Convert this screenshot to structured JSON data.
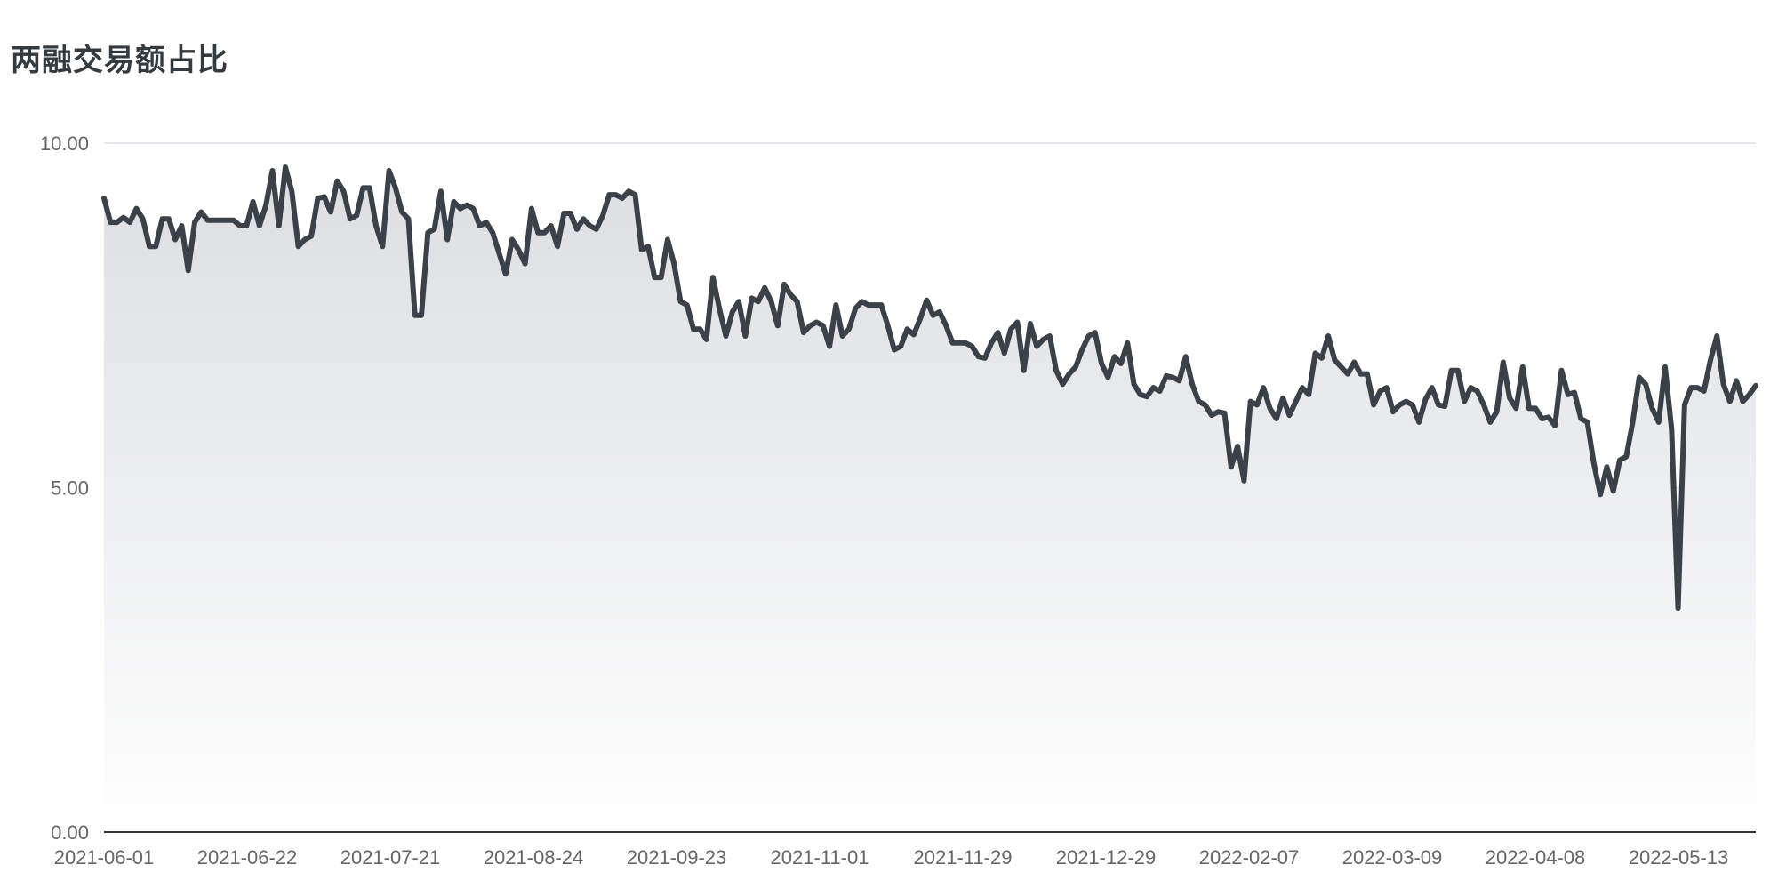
{
  "chart_data": {
    "type": "area",
    "title": "两融交易额占比",
    "xlabel": "",
    "ylabel": "",
    "ylim": [
      0,
      10
    ],
    "yticks": [
      "0.00",
      "5.00",
      "10.00"
    ],
    "xticks": [
      "2021-06-01",
      "2021-06-22",
      "2021-07-21",
      "2021-08-24",
      "2021-09-23",
      "2021-11-01",
      "2021-11-29",
      "2021-12-29",
      "2022-02-07",
      "2022-03-09",
      "2022-04-08",
      "2022-05-13"
    ],
    "grid": true,
    "legend": "none",
    "colors": {
      "line": "#3b4148",
      "fill_top": "#dcdee1",
      "fill_bottom": "#ffffff",
      "grid": "#d9dde3",
      "axis": "#333333"
    },
    "series": [
      {
        "values": [
          9.2,
          8.85,
          8.85,
          8.92,
          8.85,
          9.05,
          8.9,
          8.5,
          8.5,
          8.9,
          8.9,
          8.6,
          8.8,
          8.15,
          8.85,
          9.0,
          8.88,
          8.88,
          8.88,
          8.88,
          8.88,
          8.8,
          8.8,
          9.15,
          8.8,
          9.1,
          9.6,
          8.8,
          9.65,
          9.3,
          8.5,
          8.6,
          8.65,
          9.2,
          9.22,
          9.0,
          9.45,
          9.3,
          8.9,
          8.95,
          9.35,
          9.35,
          8.8,
          8.5,
          9.6,
          9.35,
          9.0,
          8.9,
          7.5,
          7.5,
          8.7,
          8.75,
          9.3,
          8.6,
          9.15,
          9.05,
          9.1,
          9.05,
          8.8,
          8.85,
          8.7,
          8.4,
          8.1,
          8.6,
          8.45,
          8.25,
          9.05,
          8.7,
          8.7,
          8.8,
          8.5,
          8.98,
          8.98,
          8.75,
          8.9,
          8.8,
          8.75,
          8.95,
          9.25,
          9.25,
          9.2,
          9.3,
          9.25,
          8.45,
          8.5,
          8.05,
          8.05,
          8.6,
          8.25,
          7.7,
          7.65,
          7.3,
          7.3,
          7.15,
          8.05,
          7.6,
          7.2,
          7.55,
          7.7,
          7.2,
          7.75,
          7.7,
          7.9,
          7.7,
          7.35,
          7.95,
          7.8,
          7.7,
          7.25,
          7.35,
          7.4,
          7.35,
          7.05,
          7.65,
          7.2,
          7.3,
          7.6,
          7.7,
          7.65,
          7.65,
          7.65,
          7.35,
          7.0,
          7.05,
          7.3,
          7.22,
          7.45,
          7.72,
          7.5,
          7.55,
          7.35,
          7.1,
          7.1,
          7.1,
          7.05,
          6.9,
          6.88,
          7.1,
          7.25,
          6.95,
          7.3,
          7.4,
          6.7,
          7.38,
          7.05,
          7.15,
          7.2,
          6.7,
          6.5,
          6.65,
          6.75,
          7.0,
          7.2,
          7.25,
          6.8,
          6.6,
          6.9,
          6.8,
          7.1,
          6.5,
          6.35,
          6.32,
          6.45,
          6.4,
          6.62,
          6.6,
          6.55,
          6.9,
          6.5,
          6.25,
          6.2,
          6.05,
          6.1,
          6.08,
          5.3,
          5.6,
          5.1,
          6.25,
          6.2,
          6.45,
          6.15,
          6.0,
          6.3,
          6.05,
          6.25,
          6.45,
          6.35,
          6.95,
          6.88,
          7.2,
          6.85,
          6.75,
          6.65,
          6.82,
          6.65,
          6.65,
          6.2,
          6.4,
          6.45,
          6.1,
          6.2,
          6.25,
          6.2,
          5.95,
          6.28,
          6.45,
          6.2,
          6.18,
          6.7,
          6.7,
          6.25,
          6.45,
          6.4,
          6.2,
          5.95,
          6.1,
          6.82,
          6.3,
          6.15,
          6.75,
          6.15,
          6.15,
          6.0,
          6.02,
          5.9,
          6.7,
          6.35,
          6.38,
          6.0,
          5.95,
          5.35,
          4.9,
          5.3,
          4.95,
          5.4,
          5.45,
          5.95,
          6.6,
          6.5,
          6.15,
          5.95,
          6.75,
          5.85,
          3.25,
          6.2,
          6.45,
          6.45,
          6.4,
          6.85,
          7.2,
          6.5,
          6.25,
          6.55,
          6.25,
          6.35,
          6.48
        ]
      }
    ]
  }
}
